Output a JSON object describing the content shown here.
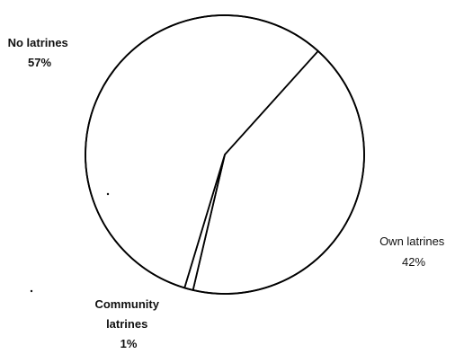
{
  "chart_data": {
    "type": "pie",
    "title": "",
    "slices": [
      {
        "name": "No latrines",
        "value": 57,
        "label_lines": [
          "No latrines",
          "57%"
        ]
      },
      {
        "name": "Own latrines",
        "value": 42,
        "label_lines": [
          "Own latrines",
          "42%"
        ]
      },
      {
        "name": "Community latrines",
        "value": 1,
        "label_lines": [
          "Community",
          "latrines",
          "1%"
        ]
      }
    ],
    "colors": {
      "fill": "#ffffff",
      "stroke": "#000000",
      "text": "#111111"
    },
    "legend": "none (labels placed outside slices)"
  }
}
